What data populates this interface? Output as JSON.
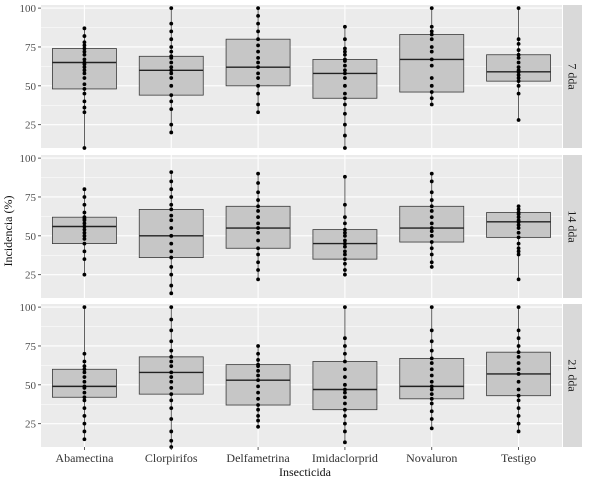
{
  "chart_data": {
    "type": "boxplot",
    "xlabel": "Insecticida",
    "ylabel": "Incidencia (%)",
    "categories": [
      "Abamectina",
      "Clorpirifos",
      "Delfametrina",
      "Imidaclorprid",
      "Novaluron",
      "Testigo"
    ],
    "yticks": [
      25,
      50,
      75,
      100
    ],
    "ylim": [
      10,
      102
    ],
    "grid": true,
    "colors": {
      "panel_bg": "#ebebeb",
      "grid": "#ffffff",
      "box_fill": "#c6c6c6",
      "box_stroke": "#3a3a3a",
      "point": "#000000",
      "strip_bg": "#d9d9d9"
    },
    "panels": [
      {
        "label": "7 dda",
        "boxes": [
          {
            "q1": 48,
            "median": 65,
            "q3": 74,
            "low": 10,
            "high": 87,
            "points": [
              10,
              33,
              36,
              40,
              45,
              48,
              51,
              55,
              58,
              60,
              62,
              64,
              65,
              67,
              70,
              72,
              74,
              76,
              78,
              82,
              87
            ]
          },
          {
            "q1": 44,
            "median": 60,
            "q3": 69,
            "low": 20,
            "high": 100,
            "points": [
              20,
              25,
              35,
              40,
              44,
              50,
              55,
              58,
              60,
              62,
              65,
              68,
              69,
              72,
              75,
              80,
              85,
              90,
              100
            ]
          },
          {
            "q1": 50,
            "median": 62,
            "q3": 80,
            "low": 33,
            "high": 100,
            "points": [
              33,
              38,
              45,
              50,
              55,
              58,
              62,
              65,
              68,
              72,
              76,
              80,
              85,
              90,
              95,
              100
            ]
          },
          {
            "q1": 42,
            "median": 58,
            "q3": 67,
            "low": 10,
            "high": 88,
            "points": [
              10,
              18,
              25,
              32,
              38,
              42,
              45,
              50,
              55,
              58,
              60,
              63,
              66,
              67,
              70,
              72,
              74,
              80,
              88
            ]
          },
          {
            "q1": 46,
            "median": 67,
            "q3": 83,
            "low": 38,
            "high": 100,
            "points": [
              38,
              42,
              46,
              50,
              55,
              63,
              67,
              72,
              75,
              80,
              83,
              85,
              88,
              100
            ]
          },
          {
            "q1": 53,
            "median": 59,
            "q3": 70,
            "low": 28,
            "high": 100,
            "points": [
              28,
              45,
              50,
              53,
              55,
              57,
              59,
              60,
              62,
              65,
              68,
              70,
              73,
              77,
              80,
              100
            ]
          }
        ]
      },
      {
        "label": "14 dda",
        "boxes": [
          {
            "q1": 45,
            "median": 56,
            "q3": 62,
            "low": 25,
            "high": 80,
            "points": [
              25,
              35,
              40,
              45,
              48,
              50,
              52,
              54,
              56,
              58,
              60,
              61,
              62,
              65,
              70,
              75,
              80
            ]
          },
          {
            "q1": 36,
            "median": 50,
            "q3": 67,
            "low": 13,
            "high": 91,
            "points": [
              13,
              18,
              25,
              30,
              36,
              40,
              45,
              50,
              55,
              60,
              63,
              67,
              70,
              75,
              80,
              85,
              91
            ]
          },
          {
            "q1": 42,
            "median": 55,
            "q3": 69,
            "low": 22,
            "high": 90,
            "points": [
              22,
              28,
              33,
              38,
              42,
              47,
              52,
              55,
              58,
              62,
              66,
              69,
              73,
              78,
              84,
              90
            ]
          },
          {
            "q1": 35,
            "median": 45,
            "q3": 54,
            "low": 25,
            "high": 88,
            "points": [
              25,
              28,
              32,
              35,
              38,
              40,
              43,
              45,
              47,
              50,
              52,
              54,
              58,
              62,
              70,
              88
            ]
          },
          {
            "q1": 46,
            "median": 55,
            "q3": 69,
            "low": 30,
            "high": 90,
            "points": [
              30,
              33,
              38,
              42,
              46,
              50,
              53,
              55,
              58,
              62,
              66,
              69,
              73,
              78,
              85,
              90
            ]
          },
          {
            "q1": 49,
            "median": 59,
            "q3": 65,
            "low": 22,
            "high": 69,
            "points": [
              22,
              38,
              40,
              42,
              45,
              49,
              52,
              55,
              57,
              59,
              60,
              62,
              64,
              65,
              67,
              69
            ]
          }
        ]
      },
      {
        "label": "21 dda",
        "boxes": [
          {
            "q1": 42,
            "median": 49,
            "q3": 60,
            "low": 15,
            "high": 100,
            "points": [
              15,
              20,
              25,
              30,
              35,
              40,
              42,
              45,
              48,
              49,
              52,
              55,
              58,
              60,
              62,
              65,
              70,
              100
            ]
          },
          {
            "q1": 44,
            "median": 58,
            "q3": 68,
            "low": 10,
            "high": 100,
            "points": [
              10,
              14,
              20,
              28,
              35,
              40,
              44,
              48,
              52,
              55,
              58,
              62,
              65,
              68,
              72,
              78,
              85,
              92,
              100
            ]
          },
          {
            "q1": 37,
            "median": 53,
            "q3": 63,
            "low": 23,
            "high": 75,
            "points": [
              23,
              27,
              30,
              34,
              37,
              41,
              45,
              49,
              53,
              56,
              59,
              62,
              63,
              66,
              70,
              75
            ]
          },
          {
            "q1": 34,
            "median": 47,
            "q3": 65,
            "low": 13,
            "high": 100,
            "points": [
              13,
              20,
              25,
              30,
              34,
              38,
              42,
              45,
              47,
              50,
              55,
              60,
              65,
              70,
              75,
              80,
              100
            ]
          },
          {
            "q1": 41,
            "median": 49,
            "q3": 67,
            "low": 22,
            "high": 100,
            "points": [
              22,
              28,
              33,
              38,
              41,
              44,
              47,
              49,
              52,
              56,
              60,
              64,
              67,
              72,
              78,
              85,
              100
            ]
          },
          {
            "q1": 43,
            "median": 57,
            "q3": 71,
            "low": 20,
            "high": 100,
            "points": [
              20,
              25,
              30,
              35,
              40,
              43,
              47,
              52,
              57,
              60,
              64,
              68,
              71,
              75,
              80,
              85,
              100
            ]
          }
        ]
      }
    ]
  }
}
